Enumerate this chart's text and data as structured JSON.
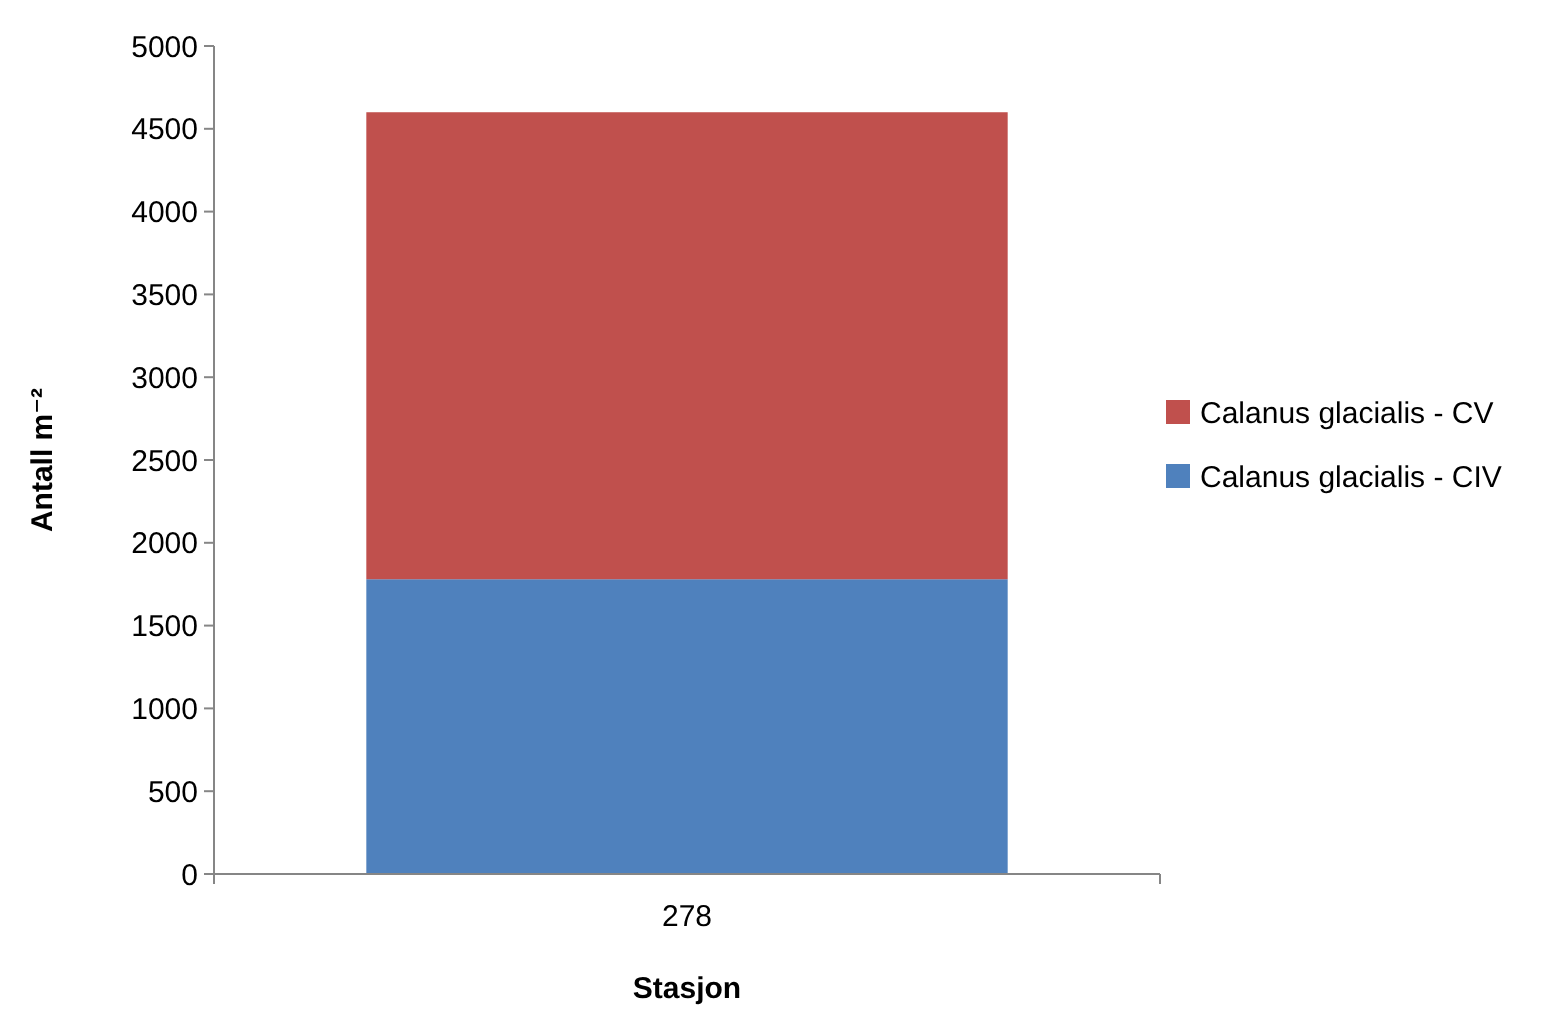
{
  "chart_data": {
    "type": "bar",
    "stacked": true,
    "xlabel": "Stasjon",
    "ylabel": "Antall m⁻²",
    "categories": [
      "278"
    ],
    "series": [
      {
        "name": "Calanus glacialis - CIV",
        "color": "#4f81bd",
        "values": [
          1780
        ]
      },
      {
        "name": "Calanus glacialis - CV",
        "color": "#c0504d",
        "values": [
          2820
        ]
      }
    ],
    "ylim": [
      0,
      5000
    ],
    "yticks": [
      0,
      500,
      1000,
      1500,
      2000,
      2500,
      3000,
      3500,
      4000,
      4500,
      5000
    ],
    "grid": false,
    "legend": "right"
  }
}
